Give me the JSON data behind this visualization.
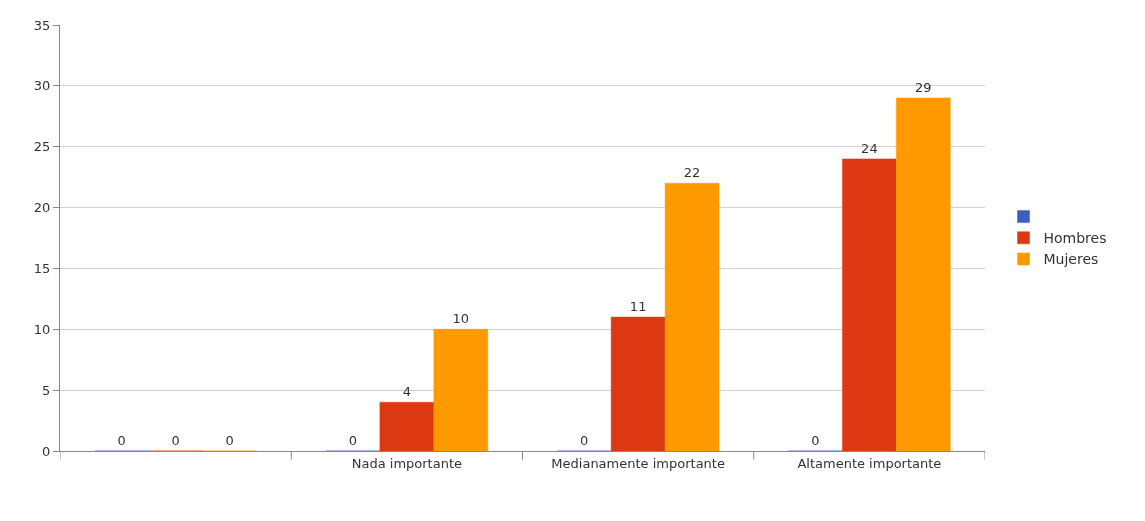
{
  "chart_data": {
    "type": "bar",
    "categories": [
      null,
      "Nada importante",
      "Medianamente importante",
      "Altamente importante"
    ],
    "series": [
      {
        "color": "#3d5fc4",
        "values": [
          0,
          0,
          0,
          0
        ]
      },
      {
        "name": "Hombres",
        "color": "#dc3912",
        "values": [
          0,
          4,
          11,
          24
        ]
      },
      {
        "name": "Mujeres",
        "color": "#ff9900",
        "values": [
          0,
          10,
          22,
          29
        ]
      }
    ],
    "ylim": [
      0,
      35
    ],
    "yticks": [
      0,
      5,
      10,
      15,
      20,
      25,
      30,
      35
    ],
    "grid": "y",
    "legend": "right",
    "data_labels": true
  }
}
